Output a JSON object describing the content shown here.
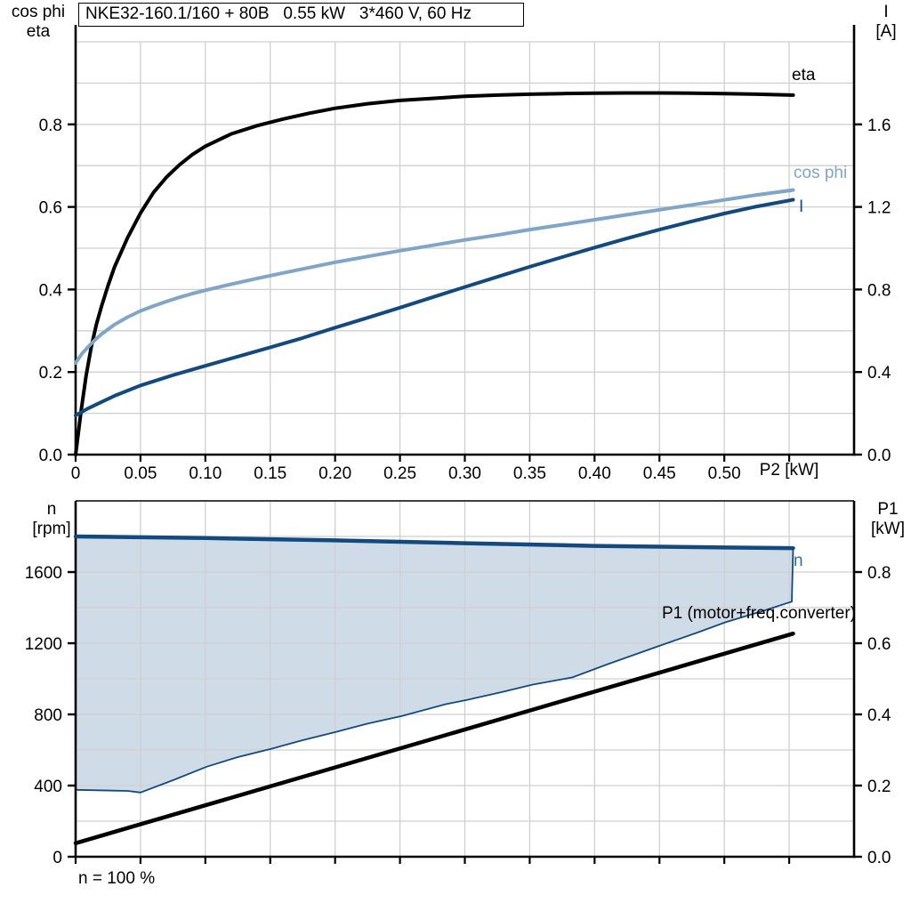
{
  "title_box": {
    "text": "NKE32-160.1/160 + 80B   0.55 kW   3*460 V, 60 Hz"
  },
  "footnote": "n = 100 %",
  "colors": {
    "black": "#000000",
    "light_blue": "#7fa5c9",
    "dark_blue": "#124a80",
    "label_blue": "#2e6da8",
    "fill_blue": "#cfdce8",
    "grid": "#cfcfcf",
    "axis": "#000000",
    "background": "#ffffff"
  },
  "chart_data": [
    {
      "id": "top",
      "type": "line",
      "title": "NKE32-160.1/160 + 80B 0.55 kW 3*460 V, 60 Hz",
      "x_axis": {
        "label": "P2 [kW]",
        "range": [
          0,
          0.6
        ],
        "tick_values": [
          0,
          0.05,
          0.1,
          0.15,
          0.2,
          0.25,
          0.3,
          0.35,
          0.4,
          0.45,
          0.5
        ],
        "tick_labels": [
          "0",
          "0.05",
          "0.10",
          "0.15",
          "0.20",
          "0.25",
          "0.30",
          "0.35",
          "0.40",
          "0.45",
          "0.50"
        ],
        "tick_marks": [
          0,
          0.05,
          0.1,
          0.15,
          0.2,
          0.25,
          0.3,
          0.35,
          0.4,
          0.45,
          0.5,
          0.55
        ],
        "grid_values": [
          0.05,
          0.1,
          0.15,
          0.2,
          0.25,
          0.3,
          0.35,
          0.4,
          0.45,
          0.5,
          0.55
        ]
      },
      "left_axis": {
        "label_lines": [
          "cos phi",
          "eta"
        ],
        "range": [
          0,
          1.0
        ],
        "tick_values": [
          0,
          0.2,
          0.4,
          0.6,
          0.8
        ],
        "tick_labels": [
          "0.0",
          "0.2",
          "0.4",
          "0.6",
          "0.8"
        ],
        "grid_values": [
          0.1,
          0.2,
          0.3,
          0.4,
          0.5,
          0.6,
          0.7,
          0.8,
          0.9,
          1.0
        ]
      },
      "right_axis": {
        "label_lines": [
          "I",
          "[A]"
        ],
        "range": [
          0,
          2.0
        ],
        "tick_values": [
          0,
          0.4,
          0.8,
          1.2,
          1.6
        ],
        "tick_labels": [
          "0.0",
          "0.4",
          "0.8",
          "1.2",
          "1.6"
        ]
      },
      "series": [
        {
          "name": "eta",
          "label": "eta",
          "axis": "left",
          "color_key": "black",
          "width": 4,
          "points": [
            [
              0,
              0
            ],
            [
              0.004,
              0.1
            ],
            [
              0.008,
              0.19
            ],
            [
              0.012,
              0.26
            ],
            [
              0.016,
              0.315
            ],
            [
              0.02,
              0.36
            ],
            [
              0.025,
              0.41
            ],
            [
              0.03,
              0.455
            ],
            [
              0.04,
              0.525
            ],
            [
              0.05,
              0.585
            ],
            [
              0.06,
              0.635
            ],
            [
              0.07,
              0.672
            ],
            [
              0.08,
              0.702
            ],
            [
              0.09,
              0.727
            ],
            [
              0.1,
              0.747
            ],
            [
              0.12,
              0.777
            ],
            [
              0.14,
              0.797
            ],
            [
              0.16,
              0.813
            ],
            [
              0.18,
              0.827
            ],
            [
              0.2,
              0.839
            ],
            [
              0.225,
              0.85
            ],
            [
              0.25,
              0.858
            ],
            [
              0.275,
              0.863
            ],
            [
              0.3,
              0.868
            ],
            [
              0.325,
              0.871
            ],
            [
              0.35,
              0.873
            ],
            [
              0.375,
              0.8745
            ],
            [
              0.4,
              0.8755
            ],
            [
              0.425,
              0.876
            ],
            [
              0.45,
              0.876
            ],
            [
              0.475,
              0.8755
            ],
            [
              0.5,
              0.8745
            ],
            [
              0.525,
              0.873
            ],
            [
              0.553,
              0.871
            ]
          ]
        },
        {
          "name": "cosphi",
          "label": "cos phi",
          "axis": "left",
          "color_key": "light_blue",
          "width": 4,
          "points": [
            [
              0,
              0.222
            ],
            [
              0.005,
              0.245
            ],
            [
              0.01,
              0.262
            ],
            [
              0.015,
              0.278
            ],
            [
              0.02,
              0.292
            ],
            [
              0.03,
              0.315
            ],
            [
              0.04,
              0.333
            ],
            [
              0.05,
              0.348
            ],
            [
              0.06,
              0.36
            ],
            [
              0.07,
              0.371
            ],
            [
              0.08,
              0.381
            ],
            [
              0.09,
              0.39
            ],
            [
              0.1,
              0.398
            ],
            [
              0.12,
              0.413
            ],
            [
              0.14,
              0.427
            ],
            [
              0.16,
              0.44
            ],
            [
              0.18,
              0.453
            ],
            [
              0.2,
              0.466
            ],
            [
              0.225,
              0.48
            ],
            [
              0.25,
              0.494
            ],
            [
              0.275,
              0.507
            ],
            [
              0.3,
              0.52
            ],
            [
              0.325,
              0.532
            ],
            [
              0.35,
              0.545
            ],
            [
              0.375,
              0.557
            ],
            [
              0.4,
              0.569
            ],
            [
              0.425,
              0.581
            ],
            [
              0.45,
              0.593
            ],
            [
              0.475,
              0.605
            ],
            [
              0.5,
              0.617
            ],
            [
              0.525,
              0.629
            ],
            [
              0.553,
              0.641
            ]
          ]
        },
        {
          "name": "current",
          "label": "I",
          "axis": "right",
          "color_key": "dark_blue",
          "width": 4,
          "points": [
            [
              0,
              0.19
            ],
            [
              0.01,
              0.225
            ],
            [
              0.02,
              0.255
            ],
            [
              0.03,
              0.285
            ],
            [
              0.04,
              0.31
            ],
            [
              0.05,
              0.335
            ],
            [
              0.075,
              0.385
            ],
            [
              0.1,
              0.43
            ],
            [
              0.125,
              0.475
            ],
            [
              0.15,
              0.52
            ],
            [
              0.175,
              0.565
            ],
            [
              0.2,
              0.615
            ],
            [
              0.225,
              0.663
            ],
            [
              0.25,
              0.712
            ],
            [
              0.275,
              0.762
            ],
            [
              0.3,
              0.812
            ],
            [
              0.325,
              0.861
            ],
            [
              0.35,
              0.91
            ],
            [
              0.375,
              0.957
            ],
            [
              0.4,
              1.003
            ],
            [
              0.425,
              1.048
            ],
            [
              0.45,
              1.09
            ],
            [
              0.475,
              1.13
            ],
            [
              0.5,
              1.168
            ],
            [
              0.525,
              1.202
            ],
            [
              0.553,
              1.235
            ]
          ]
        }
      ]
    },
    {
      "id": "bottom",
      "type": "line",
      "x_axis": {
        "range": [
          0,
          0.6
        ],
        "tick_values": [],
        "tick_labels": [],
        "tick_marks": [
          0,
          0.05,
          0.1,
          0.15,
          0.2,
          0.25,
          0.3,
          0.35,
          0.4,
          0.45,
          0.5,
          0.55
        ],
        "grid_values": [
          0.05,
          0.1,
          0.15,
          0.2,
          0.25,
          0.3,
          0.35,
          0.4,
          0.45,
          0.5,
          0.55
        ]
      },
      "left_axis": {
        "label_lines": [
          "n",
          "[rpm]"
        ],
        "range": [
          0,
          2000
        ],
        "tick_values": [
          0,
          400,
          800,
          1200,
          1600
        ],
        "tick_labels": [
          "0",
          "400",
          "800",
          "1200",
          "1600"
        ],
        "grid_values": [
          200,
          400,
          600,
          800,
          1000,
          1200,
          1400,
          1600,
          1800
        ]
      },
      "right_axis": {
        "label_lines": [
          "P1",
          "[kW]"
        ],
        "range": [
          0,
          1.0
        ],
        "tick_values": [
          0,
          0.2,
          0.4,
          0.6,
          0.8
        ],
        "tick_labels": [
          "0.0",
          "0.2",
          "0.4",
          "0.6",
          "0.8"
        ]
      },
      "band": {
        "upper": "n",
        "fill_key": "fill_blue",
        "stroke_key": "dark_blue",
        "lower_points": [
          [
            0,
            376
          ],
          [
            0.04,
            370
          ],
          [
            0.05,
            361
          ],
          [
            0.075,
            430
          ],
          [
            0.101,
            506
          ],
          [
            0.125,
            560
          ],
          [
            0.151,
            607
          ],
          [
            0.175,
            655
          ],
          [
            0.201,
            702
          ],
          [
            0.225,
            748
          ],
          [
            0.252,
            792
          ],
          [
            0.285,
            857
          ],
          [
            0.302,
            882
          ],
          [
            0.33,
            928
          ],
          [
            0.352,
            967
          ],
          [
            0.383,
            1008
          ],
          [
            0.41,
            1082
          ],
          [
            0.453,
            1193
          ],
          [
            0.48,
            1262
          ],
          [
            0.501,
            1318
          ],
          [
            0.53,
            1382
          ],
          [
            0.552,
            1434
          ]
        ]
      },
      "series": [
        {
          "name": "n",
          "label": "n",
          "axis": "left",
          "color_key": "dark_blue",
          "width": 4.5,
          "points": [
            [
              0,
              1800
            ],
            [
              0.1,
              1791
            ],
            [
              0.2,
              1778
            ],
            [
              0.3,
              1762
            ],
            [
              0.4,
              1747
            ],
            [
              0.5,
              1738
            ],
            [
              0.553,
              1734
            ]
          ]
        },
        {
          "name": "P1",
          "label": "P1 (motor+freq.converter)",
          "axis": "right",
          "color_key": "black",
          "width": 4.5,
          "points": [
            [
              0,
              0.038
            ],
            [
              0.553,
              0.627
            ]
          ]
        }
      ]
    }
  ]
}
